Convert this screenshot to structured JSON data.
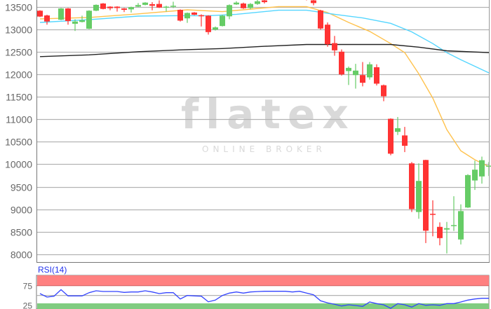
{
  "chart_data": [
    {
      "type": "candlestick",
      "title": "",
      "ylim": [
        7850,
        13640
      ],
      "yticks": [
        13500,
        13000,
        12500,
        12000,
        11500,
        11000,
        10500,
        10000,
        9500,
        9000,
        8500,
        8000
      ],
      "grid": true,
      "colors": {
        "up": "#66cc66",
        "down": "#ff3333",
        "ma_short": "#ffc24d",
        "ma_mid": "#55d6ff",
        "ma_long": "#222222"
      },
      "candles": [
        [
          13410,
          13420,
          13270,
          13280
        ],
        [
          13305,
          13320,
          13100,
          13170
        ],
        null,
        [
          13210,
          13470,
          13200,
          13460
        ],
        [
          13460,
          13470,
          13100,
          13180
        ],
        [
          13120,
          13220,
          12960,
          13170
        ],
        [
          13160,
          13300,
          13150,
          13200
        ],
        [
          13010,
          13420,
          13000,
          13410
        ],
        [
          13410,
          13550,
          13400,
          13540
        ],
        [
          13570,
          13580,
          13440,
          13450
        ],
        [
          13500,
          13510,
          13420,
          13465
        ],
        [
          13500,
          13510,
          13390,
          13470
        ],
        [
          13460,
          13470,
          13380,
          13430
        ],
        [
          13440,
          13500,
          13370,
          13490
        ],
        [
          13500,
          13580,
          13490,
          13535
        ],
        [
          13540,
          13600,
          13530,
          13590
        ],
        [
          13555,
          13600,
          13420,
          13520
        ],
        [
          13560,
          13640,
          13470,
          13480
        ],
        [
          13490,
          13520,
          13390,
          13500
        ],
        [
          13510,
          13610,
          13470,
          13520
        ],
        [
          13430,
          13440,
          13170,
          13190
        ],
        [
          13240,
          13370,
          13140,
          13360
        ],
        [
          13370,
          13380,
          13310,
          13320
        ],
        [
          13310,
          13330,
          13060,
          13300
        ],
        [
          13300,
          13310,
          12880,
          12935
        ],
        [
          12990,
          13060,
          12970,
          13040
        ],
        [
          13070,
          13320,
          13060,
          13300
        ],
        [
          13285,
          13550,
          13220,
          13535
        ],
        [
          13550,
          13620,
          13540,
          13590
        ],
        [
          13570,
          13590,
          13450,
          13465
        ],
        [
          13470,
          13580,
          13440,
          13560
        ],
        [
          13560,
          13650,
          13540,
          13620
        ],
        [
          13640,
          13680,
          13570,
          13600
        ],
        [
          13700,
          13760,
          13660,
          13720
        ],
        [
          13720,
          13780,
          13680,
          13700
        ],
        [
          13700,
          13760,
          13670,
          13740
        ],
        [
          13740,
          13790,
          13700,
          13710
        ],
        [
          13710,
          13750,
          13660,
          13690
        ],
        [
          13690,
          13720,
          13640,
          13650
        ],
        [
          13640,
          13660,
          13530,
          13580
        ],
        [
          13415,
          13430,
          12990,
          13015
        ],
        [
          13100,
          13150,
          12610,
          12665
        ],
        [
          12690,
          12850,
          12410,
          12530
        ],
        [
          12500,
          12550,
          11970,
          11995
        ],
        [
          12070,
          12170,
          11760,
          12140
        ],
        [
          11980,
          12230,
          11680,
          12080
        ],
        [
          11980,
          12270,
          11730,
          11810
        ],
        [
          11930,
          12270,
          11880,
          12220
        ],
        [
          12155,
          12220,
          11750,
          11790
        ],
        [
          11755,
          11770,
          11400,
          11510
        ],
        [
          11010,
          11020,
          10200,
          10235
        ],
        [
          10720,
          11050,
          10650,
          10800
        ],
        [
          10640,
          10830,
          10270,
          10410
        ],
        [
          10020,
          10050,
          8940,
          9005
        ],
        [
          8940,
          10020,
          8790,
          9630
        ],
        [
          10095,
          10100,
          8250,
          8525
        ],
        [
          8900,
          9200,
          8400,
          8890
        ],
        [
          8610,
          8710,
          8200,
          8360
        ],
        [
          8550,
          8720,
          8020,
          8580
        ],
        [
          8630,
          9290,
          8520,
          8650
        ],
        [
          8330,
          9110,
          8220,
          8960
        ],
        [
          9040,
          9780,
          9030,
          9760
        ],
        [
          9640,
          10080,
          9430,
          9880
        ],
        [
          9730,
          10170,
          9570,
          10090
        ],
        [
          9960,
          10050,
          9740,
          9970
        ]
      ],
      "moving_averages": {
        "short": [
          [
            0,
            13230
          ],
          [
            7,
            13260
          ],
          [
            14,
            13340
          ],
          [
            21,
            13430
          ],
          [
            26,
            13390
          ],
          [
            29,
            13430
          ],
          [
            34,
            13500
          ],
          [
            38,
            13500
          ],
          [
            41,
            13370
          ],
          [
            44,
            13150
          ],
          [
            47,
            12950
          ],
          [
            50,
            12680
          ],
          [
            52,
            12480
          ],
          [
            54,
            12010
          ],
          [
            56,
            11470
          ],
          [
            58,
            10770
          ],
          [
            60,
            10300
          ],
          [
            62,
            10100
          ],
          [
            64,
            9950
          ]
        ],
        "mid": [
          [
            0,
            13150
          ],
          [
            7,
            13210
          ],
          [
            14,
            13290
          ],
          [
            19,
            13300
          ],
          [
            24,
            13300
          ],
          [
            28,
            13330
          ],
          [
            34,
            13420
          ],
          [
            38,
            13420
          ],
          [
            42,
            13330
          ],
          [
            46,
            13250
          ],
          [
            50,
            13130
          ],
          [
            53,
            12940
          ],
          [
            56,
            12680
          ],
          [
            58,
            12480
          ],
          [
            60,
            12320
          ],
          [
            64,
            12030
          ]
        ],
        "long": [
          [
            0,
            12390
          ],
          [
            7,
            12430
          ],
          [
            14,
            12500
          ],
          [
            20,
            12540
          ],
          [
            26,
            12570
          ],
          [
            32,
            12620
          ],
          [
            38,
            12660
          ],
          [
            42,
            12660
          ],
          [
            50,
            12660
          ],
          [
            54,
            12600
          ],
          [
            58,
            12520
          ],
          [
            64,
            12480
          ]
        ]
      }
    },
    {
      "type": "line",
      "title": "RSI(14)",
      "ylim": [
        0,
        100
      ],
      "yticks": [
        75,
        25
      ],
      "zones": {
        "overbought": [
          75,
          100
        ],
        "oversold": [
          0,
          30
        ],
        "overbought_color": "#ff8080",
        "oversold_color": "#80cc80"
      },
      "midline": 50,
      "color": "#3344ff",
      "values": [
        54.8,
        45.9,
        48.3,
        64.9,
        48.9,
        48.9,
        48.9,
        57.2,
        62,
        60.2,
        60.2,
        60.2,
        57.8,
        59,
        59,
        62,
        59,
        54.8,
        57.2,
        57.2,
        41.1,
        50,
        49,
        48.3,
        34,
        38.2,
        50,
        56,
        59,
        56,
        59,
        60,
        60.8,
        60.8,
        60.8,
        60.8,
        59,
        60.8,
        56,
        51.8,
        36.4,
        31,
        27.5,
        23.2,
        26.2,
        24.5,
        22.1,
        33.4,
        29.3,
        26.2,
        17.3,
        29.3,
        26.2,
        20.3,
        29.3,
        25,
        26.2,
        25,
        29.3,
        29.3,
        33.4,
        38.2,
        41.1,
        42.9,
        42.9
      ]
    }
  ],
  "watermark": {
    "logo": "flatex",
    "tagline": "ONLINE BROKER"
  }
}
